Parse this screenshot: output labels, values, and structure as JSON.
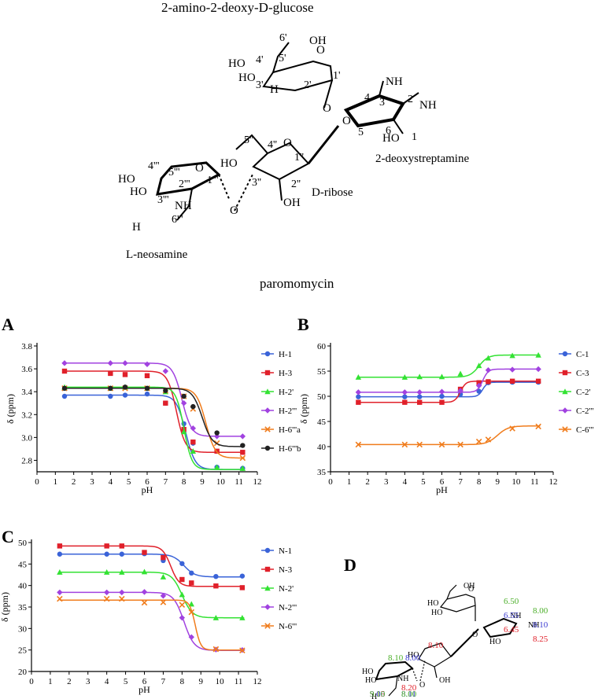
{
  "scheme": {
    "title": "2-amino-2-deoxy-D-glucose",
    "subtitle": "paromomycin",
    "ring_labels": {
      "glucose": "2-amino-2-deoxy-D-glucose",
      "streptamine": "2-deoxystreptamine",
      "ribose": "D-ribose",
      "neosamine": "L-neosamine"
    },
    "atoms": {
      "oh": "OH",
      "ho": "HO",
      "nh2": "NH",
      "h2n": "H",
      "sub2": "2",
      "o": "O",
      "c6p": "6'",
      "c5p": "5'",
      "c4p": "4'",
      "c3p": "3'",
      "c2p": "2'",
      "c1p": "1'",
      "c1": "1",
      "c2": "2",
      "c3": "3",
      "c4": "4",
      "c5": "5",
      "c6": "6",
      "c1pp": "1''",
      "c2pp": "2''",
      "c3pp": "3''",
      "c4pp": "4''",
      "c5pp": "5''",
      "c1ppp": "1'''",
      "c2ppp": "2'''",
      "c3ppp": "3'''",
      "c4ppp": "4'''",
      "c5ppp": "5'''",
      "c6ppp": "6'''"
    }
  },
  "chart_data": [
    {
      "panel": "A",
      "type": "scatter",
      "xlabel": "pH",
      "ylabel": "δ (ppm)",
      "xlim": [
        0,
        12
      ],
      "ylim": [
        2.7,
        3.8
      ],
      "xticks": [
        0,
        1,
        2,
        3,
        4,
        5,
        6,
        7,
        8,
        9,
        10,
        11,
        12
      ],
      "yticks": [
        2.8,
        3.0,
        3.2,
        3.4,
        3.6,
        3.8
      ],
      "legend_position": "right",
      "series": [
        {
          "name": "H-1",
          "color": "#3a63d8",
          "marker": "circle",
          "x": [
            1.5,
            4.0,
            4.8,
            6.0,
            7.0,
            8.0,
            8.5,
            9.8,
            11.2
          ],
          "y": [
            3.36,
            3.36,
            3.37,
            3.38,
            3.3,
            3.12,
            2.95,
            2.74,
            2.73
          ],
          "fit": {
            "top": 3.37,
            "bottom": 2.72,
            "pka": 8.1,
            "k": 1.7
          }
        },
        {
          "name": "H-3",
          "color": "#e0202a",
          "marker": "square",
          "x": [
            1.5,
            4.0,
            4.8,
            6.0,
            7.0,
            8.0,
            8.5,
            9.8,
            11.2
          ],
          "y": [
            3.58,
            3.56,
            3.55,
            3.54,
            3.3,
            3.07,
            2.96,
            2.88,
            2.87
          ],
          "fit": {
            "top": 3.58,
            "bottom": 2.87,
            "pka": 7.6,
            "k": 1.8
          }
        },
        {
          "name": "H-2'",
          "color": "#33e233",
          "marker": "triangle",
          "x": [
            1.5,
            4.0,
            4.8,
            6.0,
            7.0,
            8.0,
            8.5,
            9.8,
            11.2
          ],
          "y": [
            3.44,
            3.43,
            3.44,
            3.43,
            3.4,
            3.05,
            2.88,
            2.74,
            2.73
          ],
          "fit": {
            "top": 3.44,
            "bottom": 2.72,
            "pka": 8.0,
            "k": 2.0
          }
        },
        {
          "name": "H-2'''",
          "color": "#a142e0",
          "marker": "diamond",
          "x": [
            1.5,
            4.0,
            4.8,
            6.0,
            7.0,
            8.0,
            8.5,
            9.8,
            11.2
          ],
          "y": [
            3.65,
            3.65,
            3.65,
            3.64,
            3.58,
            3.3,
            3.08,
            3.01,
            3.01
          ],
          "fit": {
            "top": 3.65,
            "bottom": 3.01,
            "pka": 7.9,
            "k": 1.7
          }
        },
        {
          "name": "H-6'''a",
          "color": "#f07c1c",
          "marker": "x",
          "x": [
            1.5,
            4.0,
            4.8,
            6.0,
            7.0,
            8.0,
            8.5,
            9.8,
            11.2
          ],
          "y": [
            3.43,
            3.43,
            3.43,
            3.43,
            3.41,
            3.36,
            3.25,
            2.95,
            2.82
          ],
          "fit": {
            "top": 3.43,
            "bottom": 2.82,
            "pka": 9.2,
            "k": 1.7
          }
        },
        {
          "name": "H-6'''b",
          "color": "#222222",
          "marker": "circle",
          "x": [
            1.5,
            4.0,
            4.8,
            6.0,
            7.0,
            8.0,
            8.5,
            9.8,
            11.2
          ],
          "y": [
            3.43,
            3.43,
            3.44,
            3.43,
            3.41,
            3.36,
            3.27,
            3.04,
            2.93
          ],
          "fit": {
            "top": 3.43,
            "bottom": 2.92,
            "pka": 9.0,
            "k": 1.6
          }
        }
      ]
    },
    {
      "panel": "B",
      "type": "scatter",
      "xlabel": "pH",
      "ylabel": "δ (ppm)",
      "xlim": [
        0,
        12
      ],
      "ylim": [
        35,
        60
      ],
      "xticks": [
        0,
        1,
        2,
        3,
        4,
        5,
        6,
        7,
        8,
        9,
        10,
        11,
        12
      ],
      "yticks": [
        35,
        40,
        45,
        50,
        55,
        60
      ],
      "legend_position": "right",
      "series": [
        {
          "name": "C-1",
          "color": "#3a63d8",
          "marker": "circle",
          "x": [
            1.5,
            4.0,
            4.8,
            6.0,
            7.0,
            8.0,
            8.5,
            9.8,
            11.2
          ],
          "y": [
            49.9,
            49.9,
            49.9,
            50.0,
            50.4,
            51.0,
            52.7,
            52.8,
            52.8
          ],
          "fit": {
            "top": 49.9,
            "bottom": 52.8,
            "pka": 8.2,
            "k": 3.5
          }
        },
        {
          "name": "C-3",
          "color": "#e0202a",
          "marker": "square",
          "x": [
            1.5,
            4.0,
            4.8,
            6.0,
            7.0,
            8.0,
            8.5,
            9.8,
            11.2
          ],
          "y": [
            48.8,
            48.8,
            48.8,
            48.8,
            51.4,
            52.7,
            52.9,
            53.0,
            53.0
          ],
          "fit": {
            "top": 48.8,
            "bottom": 53.0,
            "pka": 7.0,
            "k": 3.0
          }
        },
        {
          "name": "C-2'",
          "color": "#33e233",
          "marker": "triangle",
          "x": [
            1.5,
            4.0,
            4.8,
            6.0,
            7.0,
            8.0,
            8.5,
            9.8,
            11.2
          ],
          "y": [
            53.8,
            53.8,
            53.9,
            53.9,
            54.5,
            56.1,
            57.6,
            58.1,
            58.2
          ],
          "fit": {
            "top": 53.8,
            "bottom": 58.2,
            "pka": 8.0,
            "k": 1.8
          }
        },
        {
          "name": "C-2'''",
          "color": "#a142e0",
          "marker": "diamond",
          "x": [
            1.5,
            4.0,
            4.8,
            6.0,
            7.0,
            8.0,
            8.5,
            9.8,
            11.2
          ],
          "y": [
            50.8,
            50.8,
            50.8,
            50.9,
            51.1,
            52.1,
            55.2,
            55.3,
            55.4
          ],
          "fit": {
            "top": 50.8,
            "bottom": 55.4,
            "pka": 8.2,
            "k": 3.0
          }
        },
        {
          "name": "C-6'''",
          "color": "#f07c1c",
          "marker": "x",
          "x": [
            1.5,
            4.0,
            4.8,
            6.0,
            7.0,
            8.0,
            8.5,
            9.8,
            11.2
          ],
          "y": [
            40.4,
            40.4,
            40.4,
            40.4,
            40.4,
            41.0,
            41.4,
            43.6,
            44.0
          ],
          "fit": {
            "top": 40.4,
            "bottom": 44.1,
            "pka": 9.0,
            "k": 1.5
          }
        }
      ]
    },
    {
      "panel": "C",
      "type": "scatter",
      "xlabel": "pH",
      "ylabel": "δ (ppm)",
      "xlim": [
        0,
        12
      ],
      "ylim": [
        20,
        50
      ],
      "xticks": [
        0,
        1,
        2,
        3,
        4,
        5,
        6,
        7,
        8,
        9,
        10,
        11,
        12
      ],
      "yticks": [
        20,
        25,
        30,
        35,
        40,
        45,
        50
      ],
      "legend_position": "right",
      "series": [
        {
          "name": "N-1",
          "color": "#3a63d8",
          "marker": "circle",
          "x": [
            1.5,
            4.0,
            4.8,
            6.0,
            7.0,
            8.0,
            8.5,
            9.8,
            11.2
          ],
          "y": [
            47.3,
            47.3,
            47.3,
            47.4,
            45.8,
            45.1,
            42.9,
            42.1,
            42.2
          ],
          "fit": {
            "top": 47.3,
            "bottom": 42.0,
            "pka": 8.1,
            "k": 1.5
          }
        },
        {
          "name": "N-3",
          "color": "#e0202a",
          "marker": "square",
          "x": [
            1.5,
            4.0,
            4.8,
            6.0,
            7.0,
            8.0,
            8.5,
            9.8,
            11.2
          ],
          "y": [
            49.2,
            49.2,
            49.2,
            47.7,
            46.5,
            41.4,
            40.6,
            39.9,
            39.5
          ],
          "fit": {
            "top": 49.2,
            "bottom": 39.8,
            "pka": 7.4,
            "k": 2.0
          }
        },
        {
          "name": "N-2'",
          "color": "#33e233",
          "marker": "triangle",
          "x": [
            1.5,
            4.0,
            4.8,
            6.0,
            7.0,
            8.0,
            8.5,
            9.8,
            11.2
          ],
          "y": [
            43.1,
            43.1,
            43.1,
            43.2,
            42.0,
            37.9,
            35.7,
            32.5,
            32.5
          ],
          "fit": {
            "top": 43.1,
            "bottom": 32.5,
            "pka": 8.0,
            "k": 1.6
          }
        },
        {
          "name": "N-2'''",
          "color": "#a142e0",
          "marker": "diamond",
          "x": [
            1.5,
            4.0,
            4.8,
            6.0,
            7.0,
            8.0,
            8.5,
            9.8,
            11.2
          ],
          "y": [
            38.4,
            38.4,
            38.4,
            38.5,
            37.6,
            32.5,
            28.0,
            25.1,
            25.0
          ],
          "fit": {
            "top": 38.4,
            "bottom": 24.9,
            "pka": 8.1,
            "k": 1.6
          }
        },
        {
          "name": "N-6'''",
          "color": "#f07c1c",
          "marker": "x",
          "x": [
            1.5,
            4.0,
            4.8,
            6.0,
            7.0,
            8.0,
            8.5,
            9.8,
            11.2
          ],
          "y": [
            36.9,
            36.9,
            36.9,
            36.0,
            36.1,
            35.5,
            33.8,
            25.2,
            24.9
          ],
          "fit": {
            "top": 36.6,
            "bottom": 25.0,
            "pka": 8.7,
            "k": 3.0
          }
        }
      ]
    }
  ],
  "panels": {
    "A": "A",
    "B": "B",
    "C": "C",
    "D": "D"
  },
  "panel_d": {
    "pka_values": [
      {
        "text": "6.50",
        "color": "#4caf2a"
      },
      {
        "text": "6.55",
        "color": "#3a3ad0"
      },
      {
        "text": "6.45",
        "color": "#e0202a"
      },
      {
        "text": "8.00",
        "color": "#4caf2a"
      },
      {
        "text": "8.10",
        "color": "#3a3ad0"
      },
      {
        "text": "8.25",
        "color": "#e0202a"
      },
      {
        "text": "8.10",
        "color": "#e0202a"
      },
      {
        "text": "8.10",
        "color": "#4caf2a"
      },
      {
        "text": "8.00",
        "color": "#3a3ad0"
      },
      {
        "text": "8.20",
        "color": "#e0202a"
      },
      {
        "text": "8.11",
        "color": "#3a3ad0"
      },
      {
        "text": "8.00",
        "color": "#4caf2a"
      },
      {
        "text": "9.15",
        "color": "#e0202a"
      },
      {
        "text": "9.00",
        "color": "#3a3ad0"
      },
      {
        "text": "9.10",
        "color": "#4caf2a"
      }
    ]
  }
}
